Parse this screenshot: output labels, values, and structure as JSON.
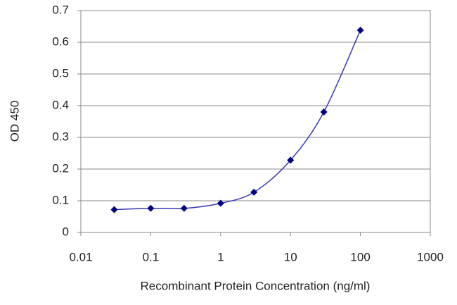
{
  "chart_data": {
    "type": "line",
    "x_label": "Recombinant Protein Concentration (ng/ml)",
    "y_label": "OD 450",
    "x": [
      0.03,
      0.1,
      0.3,
      1,
      3,
      10,
      30,
      100
    ],
    "series": [
      {
        "color": "#000080",
        "line_color": "#3a3ab8",
        "values": [
          0.072,
          0.076,
          0.076,
          0.092,
          0.127,
          0.228,
          0.38,
          0.638
        ]
      }
    ],
    "xscale": "log",
    "xlim": [
      0.01,
      1000
    ],
    "xticks": [
      0.01,
      0.1,
      1,
      10,
      100,
      1000
    ],
    "ylim": [
      0,
      0.7
    ],
    "yticks": [
      0,
      0.1,
      0.2,
      0.3,
      0.4,
      0.5,
      0.6,
      0.7
    ],
    "grid": true
  }
}
